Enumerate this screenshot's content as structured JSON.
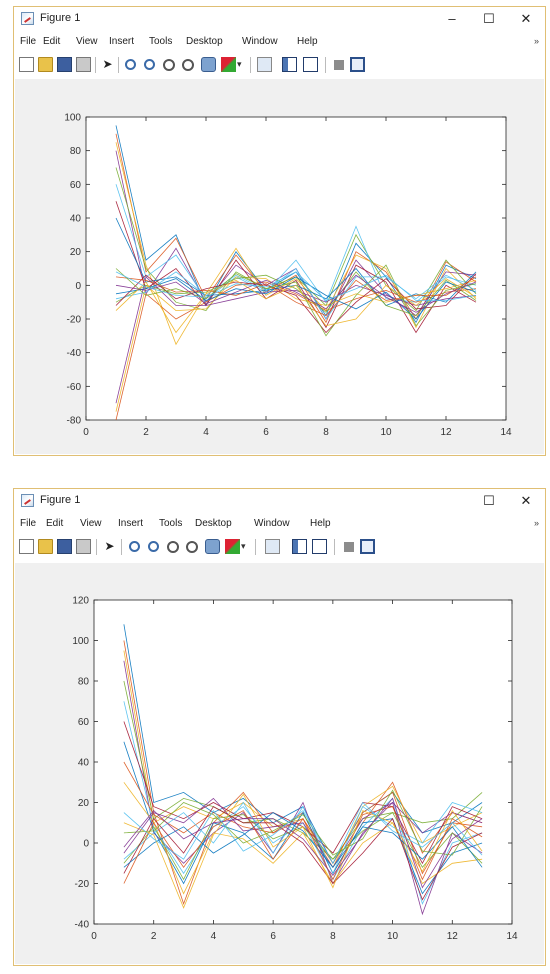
{
  "windows": [
    {
      "title": "Figure 1",
      "controls": {
        "minimize": "–",
        "maximize": "☐",
        "close": "✕"
      },
      "menu": [
        "File",
        "Edit",
        "View",
        "Insert",
        "Tools",
        "Desktop",
        "Window",
        "Help"
      ],
      "toolbar_icons": [
        "new-figure-icon",
        "open-file-icon",
        "save-icon",
        "print-icon",
        "edit-plot-arrow-icon",
        "zoom-in-icon",
        "zoom-out-icon",
        "pan-icon",
        "rotate-3d-icon",
        "data-cursor-icon",
        "brush-icon",
        "dropdown-arrow-icon",
        "link-plot-icon",
        "colorbar-icon",
        "legend-icon",
        "hide-plot-tools-icon",
        "show-plot-tools-icon"
      ],
      "chart_data": {
        "type": "line",
        "title": "",
        "xlabel": "",
        "ylabel": "",
        "xlim": [
          0,
          14
        ],
        "ylim": [
          -80,
          100
        ],
        "xticks": [
          0,
          2,
          4,
          6,
          8,
          10,
          12,
          14
        ],
        "yticks": [
          -80,
          -60,
          -40,
          -20,
          0,
          20,
          40,
          60,
          80,
          100
        ],
        "grid": false,
        "x": [
          1,
          2,
          3,
          4,
          5,
          6,
          7,
          8,
          9,
          10,
          11,
          12,
          13
        ],
        "series": [
          {
            "color": "#0072bd",
            "values": [
              95,
              15,
              30,
              -12,
              20,
              -3,
              8,
              -18,
              25,
              5,
              -22,
              12,
              4
            ]
          },
          {
            "color": "#d95319",
            "values": [
              90,
              8,
              28,
              -8,
              18,
              -4,
              6,
              -22,
              20,
              8,
              -20,
              14,
              2
            ]
          },
          {
            "color": "#edb120",
            "values": [
              85,
              12,
              -35,
              -5,
              22,
              -6,
              4,
              -15,
              18,
              10,
              -25,
              10,
              -8
            ]
          },
          {
            "color": "#7e2f8e",
            "values": [
              80,
              -5,
              22,
              -10,
              12,
              0,
              10,
              -20,
              15,
              -5,
              -18,
              8,
              6
            ]
          },
          {
            "color": "#77ac30",
            "values": [
              70,
              10,
              -10,
              -15,
              8,
              -2,
              5,
              -12,
              30,
              0,
              -15,
              15,
              -5
            ]
          },
          {
            "color": "#4dbeee",
            "values": [
              60,
              5,
              18,
              -8,
              5,
              -4,
              15,
              -10,
              35,
              -8,
              -10,
              5,
              0
            ]
          },
          {
            "color": "#a2142f",
            "values": [
              50,
              -2,
              10,
              -12,
              15,
              -8,
              3,
              -25,
              12,
              2,
              -28,
              0,
              -10
            ]
          },
          {
            "color": "#0072bd",
            "values": [
              40,
              2,
              5,
              -6,
              -5,
              -3,
              0,
              -8,
              10,
              -12,
              -5,
              -10,
              8
            ]
          },
          {
            "color": "#d95319",
            "values": [
              -80,
              -5,
              -20,
              -10,
              0,
              2,
              -5,
              -15,
              -8,
              -3,
              -10,
              -4,
              -2
            ]
          },
          {
            "color": "#edb120",
            "values": [
              -75,
              0,
              -15,
              -14,
              5,
              4,
              -8,
              -12,
              -5,
              -10,
              -6,
              -2,
              3
            ]
          },
          {
            "color": "#7e2f8e",
            "values": [
              -70,
              5,
              -12,
              -12,
              -8,
              -4,
              -3,
              -10,
              0,
              -6,
              -12,
              -8,
              -6
            ]
          },
          {
            "color": "#77ac30",
            "values": [
              -10,
              0,
              -5,
              -4,
              4,
              6,
              -2,
              -16,
              8,
              -12,
              -18,
              3,
              -9
            ]
          },
          {
            "color": "#4dbeee",
            "values": [
              -8,
              -4,
              8,
              -6,
              6,
              -3,
              10,
              -20,
              5,
              5,
              -8,
              6,
              -3
            ]
          },
          {
            "color": "#a2142f",
            "values": [
              -12,
              6,
              -8,
              -2,
              2,
              0,
              -6,
              -28,
              -10,
              4,
              -14,
              -12,
              7
            ]
          },
          {
            "color": "#0072bd",
            "values": [
              -5,
              -2,
              4,
              -9,
              -2,
              -5,
              5,
              -6,
              -14,
              -4,
              -20,
              2,
              -4
            ]
          },
          {
            "color": "#d95319",
            "values": [
              5,
              3,
              -4,
              -3,
              -6,
              1,
              -10,
              -18,
              3,
              -9,
              -6,
              -6,
              5
            ]
          },
          {
            "color": "#77ac30",
            "values": [
              10,
              -6,
              -2,
              -8,
              7,
              -2,
              2,
              -30,
              -6,
              12,
              -24,
              -3,
              1
            ]
          },
          {
            "color": "#edb120",
            "values": [
              -15,
              2,
              -28,
              -5,
              3,
              -8,
              0,
              -24,
              -20,
              0,
              -12,
              4,
              -7
            ]
          },
          {
            "color": "#7e2f8e",
            "values": [
              0,
              -3,
              2,
              -11,
              -4,
              3,
              -4,
              -14,
              6,
              -7,
              -16,
              -5,
              2
            ]
          },
          {
            "color": "#4dbeee",
            "values": [
              8,
              -1,
              -6,
              -7,
              1,
              -1,
              8,
              -9,
              -2,
              6,
              -9,
              -9,
              -6
            ]
          }
        ]
      }
    },
    {
      "title": "Figure 1",
      "controls": {
        "maximize": "☐",
        "close": "✕"
      },
      "menu": [
        "File",
        "Edit",
        "View",
        "Insert",
        "Tools",
        "Desktop",
        "Window",
        "Help"
      ],
      "toolbar_icons": [
        "new-figure-icon",
        "open-file-icon",
        "save-icon",
        "print-icon",
        "edit-plot-arrow-icon",
        "zoom-in-icon",
        "zoom-out-icon",
        "pan-icon",
        "rotate-3d-icon",
        "data-cursor-icon",
        "brush-icon",
        "dropdown-arrow-icon",
        "link-plot-icon",
        "colorbar-icon",
        "legend-icon",
        "hide-plot-tools-icon",
        "show-plot-tools-icon"
      ],
      "chart_data": {
        "type": "line",
        "title": "",
        "xlabel": "",
        "ylabel": "",
        "xlim": [
          0,
          14
        ],
        "ylim": [
          -40,
          120
        ],
        "xticks": [
          0,
          2,
          4,
          6,
          8,
          10,
          12,
          14
        ],
        "yticks": [
          -40,
          -20,
          0,
          20,
          40,
          60,
          80,
          100,
          120
        ],
        "grid": false,
        "x": [
          1,
          2,
          3,
          4,
          5,
          6,
          7,
          8,
          9,
          10,
          11,
          12,
          13
        ],
        "series": [
          {
            "color": "#0072bd",
            "values": [
              108,
              20,
              25,
              15,
              22,
              10,
              18,
              -10,
              15,
              25,
              5,
              10,
              20
            ]
          },
          {
            "color": "#d95319",
            "values": [
              100,
              15,
              -30,
              10,
              25,
              5,
              15,
              -15,
              10,
              30,
              -5,
              15,
              10
            ]
          },
          {
            "color": "#edb120",
            "values": [
              95,
              10,
              18,
              12,
              20,
              8,
              12,
              -12,
              18,
              28,
              0,
              8,
              15
            ]
          },
          {
            "color": "#7e2f8e",
            "values": [
              90,
              5,
              -10,
              5,
              15,
              -5,
              20,
              -20,
              5,
              20,
              -35,
              5,
              -5
            ]
          },
          {
            "color": "#77ac30",
            "values": [
              80,
              12,
              22,
              18,
              10,
              12,
              5,
              -8,
              12,
              15,
              10,
              12,
              25
            ]
          },
          {
            "color": "#4dbeee",
            "values": [
              70,
              8,
              -15,
              8,
              18,
              0,
              10,
              -18,
              8,
              22,
              -30,
              0,
              5
            ]
          },
          {
            "color": "#a2142f",
            "values": [
              60,
              18,
              12,
              20,
              12,
              15,
              8,
              -5,
              20,
              18,
              -10,
              18,
              12
            ]
          },
          {
            "color": "#0072bd",
            "values": [
              50,
              6,
              -20,
              10,
              5,
              -8,
              15,
              -15,
              10,
              12,
              -25,
              -5,
              0
            ]
          },
          {
            "color": "#d95319",
            "values": [
              40,
              14,
              5,
              15,
              8,
              5,
              12,
              -10,
              15,
              25,
              -15,
              10,
              8
            ]
          },
          {
            "color": "#edb120",
            "values": [
              30,
              10,
              -25,
              5,
              2,
              -10,
              5,
              -20,
              0,
              10,
              -20,
              -10,
              -8
            ]
          },
          {
            "color": "#7e2f8e",
            "values": [
              -5,
              15,
              10,
              22,
              6,
              8,
              10,
              -12,
              12,
              20,
              5,
              15,
              10
            ]
          },
          {
            "color": "#77ac30",
            "values": [
              -10,
              8,
              -18,
              12,
              14,
              2,
              8,
              -8,
              6,
              15,
              -12,
              5,
              -10
            ]
          },
          {
            "color": "#4dbeee",
            "values": [
              -8,
              5,
              15,
              0,
              20,
              -5,
              18,
              -15,
              18,
              8,
              0,
              20,
              15
            ]
          },
          {
            "color": "#a2142f",
            "values": [
              -15,
              12,
              -5,
              18,
              10,
              10,
              0,
              -20,
              -5,
              12,
              -28,
              -2,
              5
            ]
          },
          {
            "color": "#0072bd",
            "values": [
              -12,
              0,
              8,
              -5,
              4,
              15,
              6,
              -12,
              8,
              5,
              -8,
              8,
              -12
            ]
          },
          {
            "color": "#d95319",
            "values": [
              -20,
              10,
              -12,
              8,
              16,
              -8,
              12,
              -18,
              14,
              18,
              -18,
              12,
              3
            ]
          },
          {
            "color": "#77ac30",
            "values": [
              5,
              6,
              20,
              14,
              0,
              6,
              14,
              -6,
              2,
              26,
              -4,
              -6,
              18
            ]
          },
          {
            "color": "#edb120",
            "values": [
              10,
              4,
              -32,
              4,
              24,
              -2,
              8,
              -22,
              16,
              10,
              -14,
              16,
              -4
            ]
          },
          {
            "color": "#7e2f8e",
            "values": [
              -2,
              16,
              2,
              10,
              12,
              12,
              2,
              -16,
              4,
              22,
              -22,
              2,
              12
            ]
          },
          {
            "color": "#4dbeee",
            "values": [
              15,
              2,
              -8,
              16,
              -4,
              4,
              16,
              -10,
              20,
              6,
              -2,
              10,
              -6
            ]
          }
        ]
      }
    }
  ]
}
